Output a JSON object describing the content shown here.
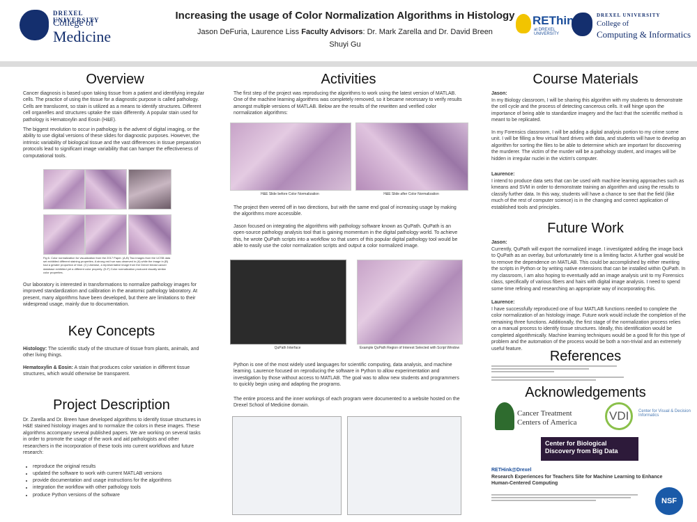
{
  "header": {
    "title": "Increasing the usage of Color Normalization Algorithms in Histology",
    "authors_plain": "Jason DeFuria, Laurence Liss ",
    "advisors_label": "Faculty Advisors",
    "advisors_names": ": Dr. Mark Zarella and Dr. David Breen",
    "extra": "Shuyi Gu",
    "left_logo": {
      "uni": "DREXEL UNIVERSITY",
      "college": "College of",
      "name": "Medicine"
    },
    "rethink": {
      "word": "REThink",
      "sub": "at DREXEL UNIVERSITY"
    },
    "right_logo": {
      "uni": "DREXEL UNIVERSITY",
      "college": "College of",
      "name": "Computing & Informatics"
    }
  },
  "overview": {
    "heading": "Overview",
    "p1": "Cancer diagnosis is based upon taking tissue from a patient and identifying irregular cells. The practice of using the tissue for a diagnostic purpose is called pathology. Cells are translucent, so stain is utilized as a means to identify structures. Different cell organelles and structures uptake the stain differently. A popular stain used for pathology is Hematoxylin and Eosin (H&E).",
    "p2": "The biggest revolution to occur in pathology is the advent of digital imaging, or the ability to use digital versions of these slides for diagnostic purposes. However, the intrinsic variability of biological tissue and the vast differences in tissue preparation protocols lead to significant image variability that can hamper the effectiveness of computational tools.",
    "figure_caption": "Fig 6. Color normalization for visualization from the 2017 Paper. (A,B) Two images from the UCSB data set exhibited different staining properties. A strong red hue was observed in (A) while the image in (B) had a greater proportion of blue. (C) Likewise, a representative image from the Drexel breast cancer database exhibited yet a different color property. (D-F) Color normalization produced visually similar color properties.",
    "p3": "Our laboratory is interested in transformations to normalize pathology images for improved standardization and calibration in the anatomic pathology laboratory. At present, many algorithms have been developed, but there are limitations to their widespread usage, mainly due to documentation."
  },
  "key_concepts": {
    "heading": "Key Concepts",
    "histology_term": "Histology:",
    "histology_def": " The scientific study of the structure of tissue from plants, animals, and other living things.",
    "he_term": "Hematoxylin & Eosin:",
    "he_def": " A stain that produces color variation in different tissue structures, which would otherwise be transparent."
  },
  "project_description": {
    "heading": "Project Description",
    "p1": "Dr. Zarella and Dr. Breen have developed algorithms to identify tissue structures in H&E stained histology images and to normalize the colors in these images. These algorithms accompany several published papers. We are working on several tasks in order to promote the usage of the work and aid pathologists and other researchers in the incorporation of these tools into current workflows and future research:",
    "bullets": [
      "reproduce the original results",
      "updated the software to work with current MATLAB versions",
      "provide documentation and usage instructions for the algorithms",
      "integration the workflow with other pathology tools",
      "produce Python versions of the software"
    ]
  },
  "activities": {
    "heading": "Activities",
    "p1": "The first step of the project was reproducing the algorithms to work using the latest version of MATLAB. One of the machine learning algorithms was completely removed, so it became necessary to verify results amongst multiple versions of MATLAB. Below are the results of the rewritten and verified color normalization algorithms:",
    "cap_before": "H&E Slide before Color Normalization",
    "cap_after": "H&E Slide after Color Normalization",
    "p2": "The project then veered off in two directions, but with the same end goal of increasing usage by making the algorithms more accessible.",
    "p3": "Jason focused on integrating the algorithms with pathology software known as QuPath. QuPath is an open-source pathology analysis tool that is gaining momentum in the digital pathology world. To achieve this, he wrote QuPath scripts into a workflow so that users of this popular digital pathology tool would be able to easily use the color normalization scripts and output a color normalized image.",
    "cap_qupath": "QuPath Interface",
    "cap_roi": "Example QuPath Region of Interest Selected with Script Window",
    "p4": "Python is one of the most widely used languages for scientific computing, data analysis, and machine learning. Laurence focused on reproducing the software in Python to allow experimentation and investigation by those without access to MATLAB. The goal was to allow new students and programmers to quickly begin using and adapting the programs.",
    "p5": "The entire process and the inner workings of each program were documented to a website hosted on the Drexel School of Medicine domain."
  },
  "course_materials": {
    "heading": "Course Materials",
    "jason_label": "Jason:",
    "jason_p1": "In my Biology classroom, I will be sharing this algorithm with my students to demonstrate the cell cycle and the process of detecting cancerous cells. It will hinge upon the importance of being able to standardize imagery and the fact that the scientific method is meant to be replicated.",
    "jason_p2": "In my Forensics classroom, I will be adding a digital analysis portion to my crime scene unit. I will be filling a few virtual hard drives with data, and students will have to develop an algorithm for sorting the files to be able to determine which are important for discovering the murderer. The victim of the murder will be a pathology student, and images will be hidden in irregular nuclei in the victim's computer.",
    "laurence_label": "Laurence:",
    "laurence_p1": "I intend to produce data sets that can be used with machine learning approaches such as kmeans and SVM in order to demonstrate training an algorithm and using the results to classify further data. In this way, students will have a chance to see that the field (like much of the rest of computer science) is in the changing and correct application of established tools and principles."
  },
  "future_work": {
    "heading": "Future Work",
    "jason_label": "Jason:",
    "jason_p1": "Currently, QuPath will export the normalized image. I investigated adding the image back to QuPath as an overlay, but unfortunately time is a limiting factor. A further goal would be to remove the dependence on MATLAB. This could be accomplished by either rewriting the scripts in Python or by writing native extensions that can be installed within QuPath. In my classroom, I am also hoping to eventually add an image analysis unit to my Forensics class, specifically of various fibers and hairs with digital image analysis. I need to spend some time refining and researching an appropriate way of incorporating this.",
    "laurence_label": "Laurence:",
    "laurence_p1": "I have successfully reproduced one of four MATLAB functions needed to complete the color normalization of an histology image. Future work would include the completion of the remaining three functions. Additionally, the first stage of the normalization process relies on a manual process to identify tissue structures. Ideally, this identification would be completed algorithmically. Machine learning techniques would be a good fit for this type of problem and the automation of the process would be both a non-trivial and an extremely useful feature."
  },
  "references": {
    "heading": "References"
  },
  "acknowledgements": {
    "heading": "Acknowledgements",
    "ctca_line1": "Cancer Treatment",
    "ctca_line2": "Centers of America",
    "vdi_letters": "VDI",
    "vdi_text": "Center for Visual & Decision Informatics",
    "cbd_text": "Center for Biological Discovery from Big Data",
    "rethink_name": "RETHink@Drexel",
    "rethink_desc": "Research Experiences for Teachers Site for Machine Learning to Enhance Human-Centered Computing",
    "nsf_label": "NSF"
  },
  "colors": {
    "drexel_navy": "#142f6e",
    "rethink_gold": "#f2c400",
    "rethink_blue": "#1a4d9a",
    "cbd_bg": "#2d1a3a"
  }
}
